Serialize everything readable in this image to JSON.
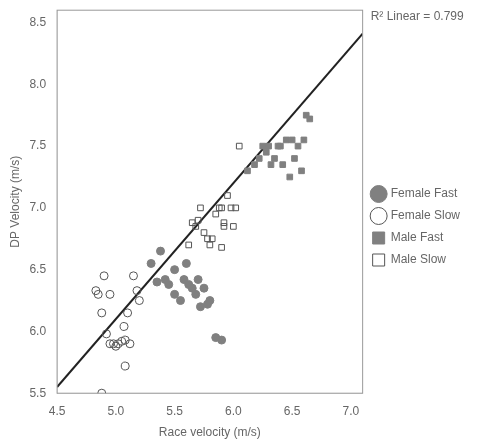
{
  "chart_data": {
    "type": "scatter",
    "xlabel": "Race velocity (m/s)",
    "ylabel": "DP Velocity (m/s)",
    "annotation": "R² Linear = 0.799",
    "xlim": [
      4.5,
      7.1
    ],
    "ylim": [
      5.5,
      8.6
    ],
    "xticks": [
      4.5,
      {
        "value": 5.0,
        "label": "5.0"
      },
      5.5,
      {
        "value": 6.0,
        "label": "6.0"
      },
      6.5,
      {
        "value": 7.0,
        "label": "7.0"
      }
    ],
    "yticks": [
      5.5,
      {
        "value": 6.0,
        "label": "6.0"
      },
      6.5,
      {
        "value": 7.0,
        "label": "7.0"
      },
      7.5,
      {
        "value": 8.0,
        "label": "8.0"
      },
      8.5
    ],
    "grid": false,
    "legend": "right",
    "series": [
      {
        "name": "Female Fast",
        "type": "scatter",
        "marker": "circle",
        "color": "#808080",
        "x": [
          5.3,
          5.35,
          5.38,
          5.42,
          5.45,
          5.5,
          5.5,
          5.55,
          5.58,
          5.6,
          5.62,
          5.65,
          5.68,
          5.7,
          5.72,
          5.75,
          5.78,
          5.8,
          5.85,
          5.9
        ],
        "values": [
          6.55,
          6.4,
          6.65,
          6.42,
          6.38,
          6.5,
          6.3,
          6.25,
          6.42,
          6.55,
          6.38,
          6.35,
          6.3,
          6.42,
          6.2,
          6.35,
          6.22,
          6.25,
          5.95,
          5.93
        ]
      },
      {
        "name": "Female Slow",
        "type": "scatter",
        "marker": "circle_open",
        "color": "#555555",
        "x": [
          4.83,
          4.85,
          4.88,
          4.9,
          4.92,
          4.95,
          4.95,
          4.98,
          5.0,
          5.02,
          5.05,
          5.07,
          5.08,
          5.1,
          5.12,
          5.15,
          5.18,
          5.2,
          5.08,
          4.88
        ],
        "values": [
          6.33,
          6.3,
          6.15,
          6.45,
          5.98,
          6.3,
          5.9,
          5.9,
          5.88,
          5.9,
          5.92,
          6.04,
          5.93,
          6.15,
          5.9,
          6.45,
          6.33,
          6.25,
          5.72,
          5.5
        ]
      },
      {
        "name": "Male Fast",
        "type": "scatter",
        "marker": "square",
        "color": "#808080",
        "x": [
          6.12,
          6.18,
          6.22,
          6.25,
          6.28,
          6.3,
          6.32,
          6.35,
          6.38,
          6.4,
          6.42,
          6.45,
          6.48,
          6.5,
          6.52,
          6.55,
          6.58,
          6.6,
          6.62,
          6.65
        ],
        "values": [
          7.3,
          7.35,
          7.4,
          7.5,
          7.45,
          7.5,
          7.35,
          7.4,
          7.5,
          7.5,
          7.35,
          7.55,
          7.25,
          7.55,
          7.4,
          7.5,
          7.3,
          7.55,
          7.75,
          7.72
        ]
      },
      {
        "name": "Male Slow",
        "type": "scatter",
        "marker": "square_open",
        "color": "#555555",
        "x": [
          5.62,
          5.65,
          5.68,
          5.7,
          5.72,
          5.75,
          5.78,
          5.8,
          5.82,
          5.85,
          5.88,
          5.9,
          5.9,
          5.92,
          5.92,
          5.95,
          5.98,
          6.0,
          6.02,
          6.05
        ],
        "values": [
          6.7,
          6.88,
          6.85,
          6.9,
          7.0,
          6.8,
          6.75,
          6.7,
          6.75,
          6.95,
          7.0,
          6.68,
          7.0,
          6.85,
          6.88,
          7.1,
          7.0,
          6.85,
          7.0,
          7.5
        ]
      },
      {
        "type": "line",
        "color": "#222222",
        "x": [
          4.5,
          7.1
        ],
        "values": [
          5.55,
          8.41
        ]
      }
    ]
  }
}
